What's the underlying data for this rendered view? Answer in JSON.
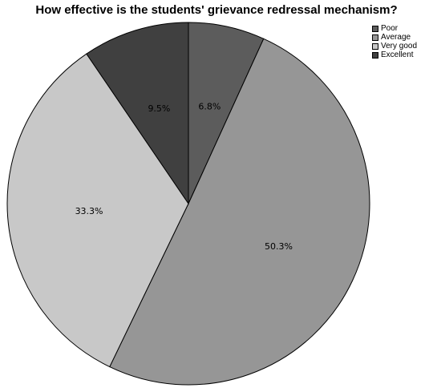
{
  "chart_data": {
    "type": "pie",
    "title": "How effective is the students' grievance redressal mechanism?",
    "categories": [
      "Poor",
      "Average",
      "Very good",
      "Excellent"
    ],
    "values": [
      6.8,
      50.3,
      33.3,
      9.5
    ],
    "labels": [
      "6.8%",
      "50.3%",
      "33.3%",
      "9.5%"
    ],
    "colors": [
      "#5c5c5c",
      "#969696",
      "#c8c8c8",
      "#404040"
    ],
    "start_angle_deg": 0,
    "direction": "clockwise",
    "legend_position": "top-right"
  }
}
